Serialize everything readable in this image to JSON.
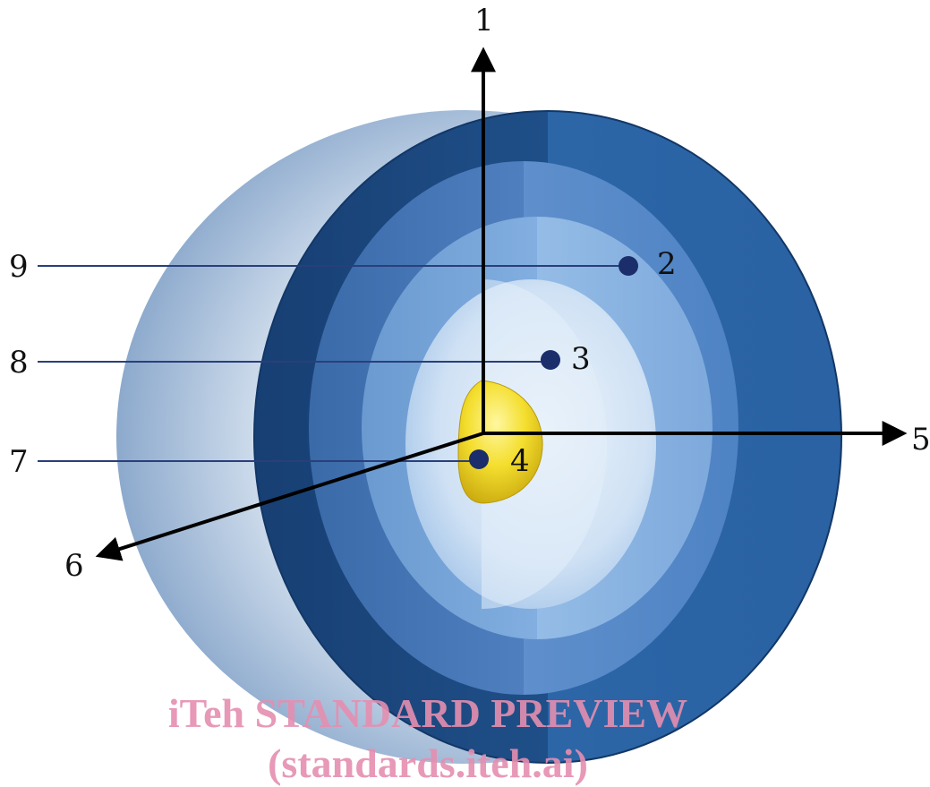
{
  "diagram": {
    "labels": {
      "axis_up": "1",
      "point_outer": "2",
      "point_middle": "3",
      "point_core": "4",
      "axis_right": "5",
      "axis_diag": "6",
      "callout_core": "7",
      "callout_middle": "8",
      "callout_outer": "9"
    },
    "colors": {
      "outer_shell": "#1f5a96",
      "layer_2": "#4677b8",
      "layer_3": "#7aa8da",
      "inner_region": "#cfe2f5",
      "back_hemisphere": "#c9d8ea",
      "core": "#f2dc2a",
      "point": "#1b2d6b",
      "axis": "#000000",
      "callout_line": "#2a3f7a"
    },
    "watermark": {
      "line1": "iTeh STANDARD PREVIEW",
      "line2": "(standards.iteh.ai)"
    }
  }
}
